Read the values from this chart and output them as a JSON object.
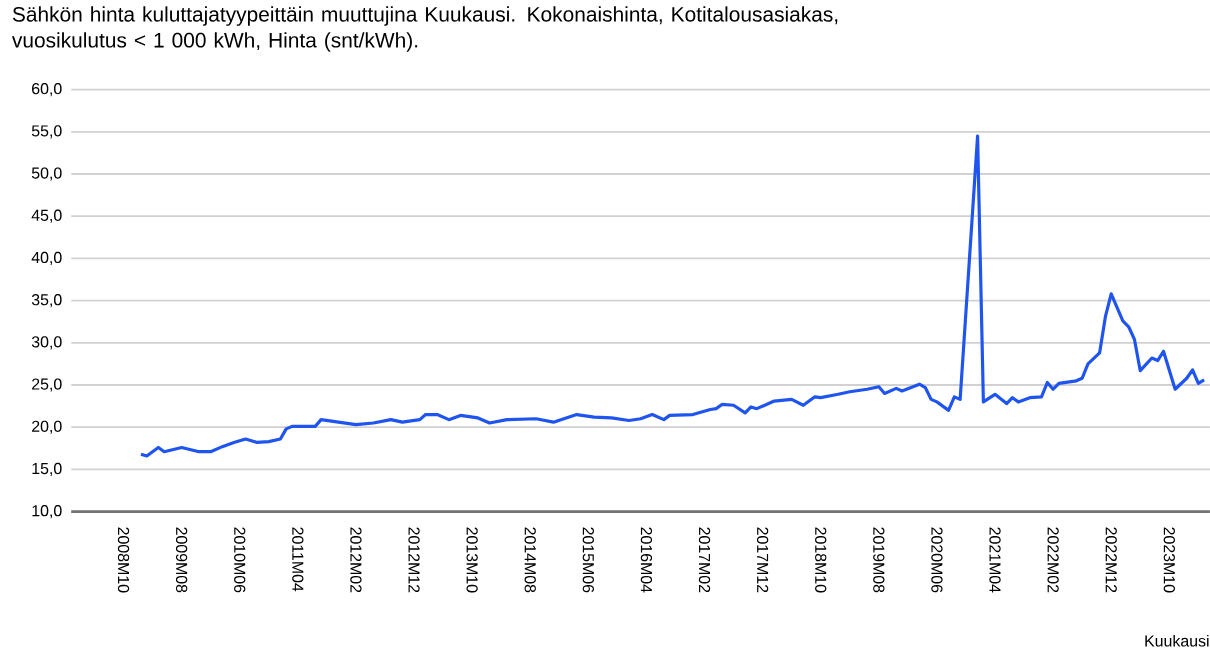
{
  "chart_data": {
    "type": "line",
    "title": "Sähkön hinta kuluttajatyypeittäin muuttujina Kuukausi. Kokonaishinta, Kotitalousasiakas, vuosikulutus < 1 000 kWh, Hinta (snt/kWh).",
    "xlabel": "Kuukausi",
    "x": [
      "2009-01",
      "2009-02",
      "2009-04",
      "2009-05",
      "2009-08",
      "2009-11",
      "2010-01",
      "2010-03",
      "2010-05",
      "2010-07",
      "2010-09",
      "2010-11",
      "2011-01",
      "2011-02",
      "2011-03",
      "2011-07",
      "2011-08",
      "2011-11",
      "2012-02",
      "2012-05",
      "2012-08",
      "2012-10",
      "2013-01",
      "2013-02",
      "2013-04",
      "2013-06",
      "2013-08",
      "2013-11",
      "2014-01",
      "2014-04",
      "2014-09",
      "2014-12",
      "2015-04",
      "2015-07",
      "2015-10",
      "2016-01",
      "2016-03",
      "2016-05",
      "2016-07",
      "2016-08",
      "2016-12",
      "2017-03",
      "2017-04",
      "2017-05",
      "2017-07",
      "2017-09",
      "2017-10",
      "2017-11",
      "2018-02",
      "2018-05",
      "2018-07",
      "2018-09",
      "2018-10",
      "2019-01",
      "2019-03",
      "2019-06",
      "2019-08",
      "2019-09",
      "2019-11",
      "2019-12",
      "2020-03",
      "2020-04",
      "2020-05",
      "2020-06",
      "2020-08",
      "2020-09",
      "2020-10",
      "2021-01",
      "2021-02",
      "2021-04",
      "2021-06",
      "2021-07",
      "2021-08",
      "2021-10",
      "2021-12",
      "2022-01",
      "2022-02",
      "2022-03",
      "2022-06",
      "2022-07",
      "2022-08",
      "2022-10",
      "2022-11",
      "2022-12",
      "2023-02",
      "2023-03",
      "2023-04",
      "2023-05",
      "2023-07",
      "2023-08",
      "2023-09",
      "2023-11",
      "2024-01",
      "2024-02",
      "2024-03",
      "2024-04"
    ],
    "series": [
      {
        "color": "#1f55ee",
        "values": [
          16.8,
          16.6,
          17.6,
          17.1,
          17.6,
          17.1,
          17.1,
          17.7,
          18.2,
          18.6,
          18.2,
          18.3,
          18.6,
          19.8,
          20.1,
          20.1,
          20.9,
          20.6,
          20.3,
          20.5,
          20.9,
          20.6,
          20.9,
          21.5,
          21.5,
          20.9,
          21.4,
          21.1,
          20.5,
          20.9,
          21.0,
          20.6,
          21.5,
          21.2,
          21.1,
          20.8,
          21.0,
          21.5,
          20.9,
          21.4,
          21.5,
          22.1,
          22.2,
          22.7,
          22.6,
          21.7,
          22.4,
          22.2,
          23.1,
          23.3,
          22.6,
          23.6,
          23.5,
          23.9,
          24.2,
          24.5,
          24.8,
          24.0,
          24.6,
          24.3,
          25.1,
          24.7,
          23.3,
          23.0,
          22.0,
          23.6,
          23.3,
          54.5,
          23.0,
          23.9,
          22.8,
          23.5,
          23.0,
          23.5,
          23.6,
          25.3,
          24.5,
          25.2,
          25.5,
          25.8,
          27.5,
          28.8,
          33.1,
          35.8,
          32.6,
          31.9,
          30.4,
          26.7,
          28.2,
          27.9,
          29.0,
          24.5,
          25.8,
          26.8,
          25.2,
          25.6
        ]
      }
    ],
    "xlim": [
      "2008-01",
      "2024-05"
    ],
    "xticks": [
      {
        "value": "2008-10",
        "label": "2008M10"
      },
      {
        "value": "2009-08",
        "label": "2009M08"
      },
      {
        "value": "2010-06",
        "label": "2010M06"
      },
      {
        "value": "2011-04",
        "label": "2011M04"
      },
      {
        "value": "2012-02",
        "label": "2012M02"
      },
      {
        "value": "2012-12",
        "label": "2012M12"
      },
      {
        "value": "2013-10",
        "label": "2013M10"
      },
      {
        "value": "2014-08",
        "label": "2014M08"
      },
      {
        "value": "2015-06",
        "label": "2015M06"
      },
      {
        "value": "2016-04",
        "label": "2016M04"
      },
      {
        "value": "2017-02",
        "label": "2017M02"
      },
      {
        "value": "2017-12",
        "label": "2017M12"
      },
      {
        "value": "2018-10",
        "label": "2018M10"
      },
      {
        "value": "2019-08",
        "label": "2019M08"
      },
      {
        "value": "2020-06",
        "label": "2020M06"
      },
      {
        "value": "2021-04",
        "label": "2021M04"
      },
      {
        "value": "2022-02",
        "label": "2022M02"
      },
      {
        "value": "2022-12",
        "label": "2022M12"
      },
      {
        "value": "2023-10",
        "label": "2023M10"
      }
    ],
    "ylim": [
      10,
      60
    ],
    "yticks": [
      {
        "value": 10,
        "label": "10,0"
      },
      {
        "value": 15,
        "label": "15,0"
      },
      {
        "value": 20,
        "label": "20,0"
      },
      {
        "value": 25,
        "label": "25,0"
      },
      {
        "value": 30,
        "label": "30,0"
      },
      {
        "value": 35,
        "label": "35,0"
      },
      {
        "value": 40,
        "label": "40,0"
      },
      {
        "value": 45,
        "label": "45,0"
      },
      {
        "value": 50,
        "label": "50,0"
      },
      {
        "value": 55,
        "label": "55,0"
      },
      {
        "value": 60,
        "label": "60,0"
      }
    ],
    "grid": "y"
  }
}
